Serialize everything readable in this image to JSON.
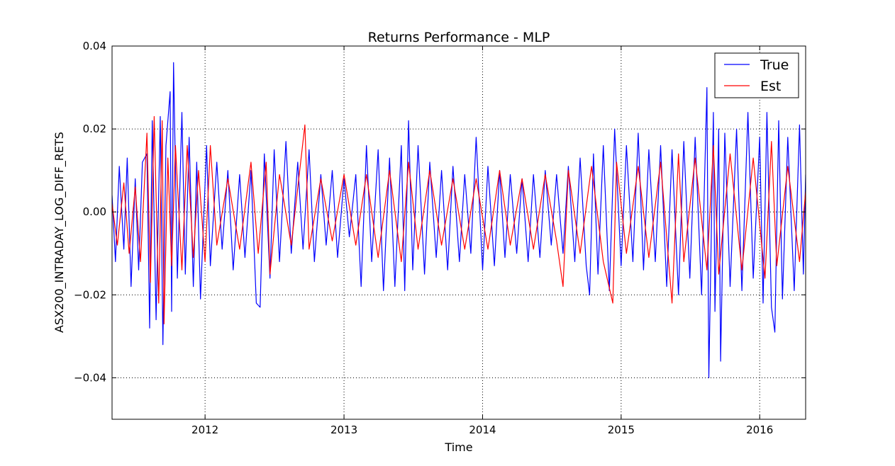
{
  "chart_data": {
    "type": "line",
    "title": "Returns Performance - MLP",
    "xlabel": "Time",
    "ylabel": "ASX200_INTRADAY_LOG_DIFF_RETS",
    "xlim": [
      "2011-05-01",
      "2016-05-01"
    ],
    "ylim": [
      -0.05,
      0.04
    ],
    "x_ticks": [
      {
        "date": "2012-01-01",
        "label": "2012"
      },
      {
        "date": "2013-01-01",
        "label": "2013"
      },
      {
        "date": "2014-01-01",
        "label": "2014"
      },
      {
        "date": "2015-01-01",
        "label": "2015"
      },
      {
        "date": "2016-01-01",
        "label": "2016"
      }
    ],
    "y_ticks": [
      {
        "value": 0.04,
        "label": "0.04"
      },
      {
        "value": 0.02,
        "label": "0.02"
      },
      {
        "value": 0.0,
        "label": "0.00"
      },
      {
        "value": -0.02,
        "label": "−0.02"
      },
      {
        "value": -0.04,
        "label": "−0.04"
      }
    ],
    "grid": true,
    "legend": "top-right",
    "series": [
      {
        "name": "True",
        "color": "#0000ff",
        "points": [
          [
            "2011-05-01",
            0.004
          ],
          [
            "2011-05-10",
            -0.012
          ],
          [
            "2011-05-20",
            0.011
          ],
          [
            "2011-06-01",
            -0.009
          ],
          [
            "2011-06-10",
            0.013
          ],
          [
            "2011-06-20",
            -0.018
          ],
          [
            "2011-07-01",
            0.008
          ],
          [
            "2011-07-10",
            -0.014
          ],
          [
            "2011-07-20",
            0.012
          ],
          [
            "2011-08-01",
            0.014
          ],
          [
            "2011-08-08",
            -0.028
          ],
          [
            "2011-08-15",
            0.022
          ],
          [
            "2011-08-25",
            -0.026
          ],
          [
            "2011-09-05",
            0.023
          ],
          [
            "2011-09-12",
            -0.032
          ],
          [
            "2011-09-20",
            0.016
          ],
          [
            "2011-10-01",
            0.029
          ],
          [
            "2011-10-05",
            -0.024
          ],
          [
            "2011-10-10",
            0.036
          ],
          [
            "2011-10-20",
            -0.016
          ],
          [
            "2011-11-01",
            0.024
          ],
          [
            "2011-11-10",
            -0.015
          ],
          [
            "2011-11-20",
            0.018
          ],
          [
            "2011-12-01",
            -0.018
          ],
          [
            "2011-12-10",
            0.012
          ],
          [
            "2011-12-20",
            -0.021
          ],
          [
            "2012-01-05",
            0.016
          ],
          [
            "2012-01-15",
            -0.013
          ],
          [
            "2012-02-01",
            0.012
          ],
          [
            "2012-02-15",
            -0.009
          ],
          [
            "2012-03-01",
            0.01
          ],
          [
            "2012-03-15",
            -0.014
          ],
          [
            "2012-04-01",
            0.009
          ],
          [
            "2012-04-15",
            -0.011
          ],
          [
            "2012-05-01",
            0.01
          ],
          [
            "2012-05-15",
            -0.022
          ],
          [
            "2012-05-25",
            -0.023
          ],
          [
            "2012-06-05",
            0.014
          ],
          [
            "2012-06-20",
            -0.016
          ],
          [
            "2012-07-01",
            0.015
          ],
          [
            "2012-07-15",
            -0.012
          ],
          [
            "2012-08-01",
            0.017
          ],
          [
            "2012-08-15",
            -0.01
          ],
          [
            "2012-09-01",
            0.012
          ],
          [
            "2012-09-15",
            -0.009
          ],
          [
            "2012-10-01",
            0.015
          ],
          [
            "2012-10-15",
            -0.012
          ],
          [
            "2012-11-01",
            0.009
          ],
          [
            "2012-11-15",
            -0.008
          ],
          [
            "2012-12-01",
            0.01
          ],
          [
            "2012-12-15",
            -0.011
          ],
          [
            "2013-01-01",
            0.008
          ],
          [
            "2013-01-15",
            -0.006
          ],
          [
            "2013-02-01",
            0.009
          ],
          [
            "2013-02-15",
            -0.018
          ],
          [
            "2013-03-01",
            0.016
          ],
          [
            "2013-03-15",
            -0.012
          ],
          [
            "2013-04-01",
            0.015
          ],
          [
            "2013-04-15",
            -0.019
          ],
          [
            "2013-05-01",
            0.013
          ],
          [
            "2013-05-15",
            -0.018
          ],
          [
            "2013-06-01",
            0.016
          ],
          [
            "2013-06-10",
            -0.019
          ],
          [
            "2013-06-20",
            0.022
          ],
          [
            "2013-07-01",
            -0.014
          ],
          [
            "2013-07-15",
            0.016
          ],
          [
            "2013-08-01",
            -0.015
          ],
          [
            "2013-08-15",
            0.012
          ],
          [
            "2013-09-01",
            -0.011
          ],
          [
            "2013-09-15",
            0.01
          ],
          [
            "2013-10-01",
            -0.014
          ],
          [
            "2013-10-15",
            0.011
          ],
          [
            "2013-11-01",
            -0.012
          ],
          [
            "2013-11-15",
            0.009
          ],
          [
            "2013-12-01",
            -0.01
          ],
          [
            "2013-12-15",
            0.018
          ],
          [
            "2014-01-01",
            -0.014
          ],
          [
            "2014-01-15",
            0.011
          ],
          [
            "2014-02-01",
            -0.013
          ],
          [
            "2014-02-15",
            0.01
          ],
          [
            "2014-03-01",
            -0.011
          ],
          [
            "2014-03-15",
            0.009
          ],
          [
            "2014-04-01",
            -0.01
          ],
          [
            "2014-04-15",
            0.008
          ],
          [
            "2014-05-01",
            -0.012
          ],
          [
            "2014-05-15",
            0.009
          ],
          [
            "2014-06-01",
            -0.011
          ],
          [
            "2014-06-15",
            0.01
          ],
          [
            "2014-07-01",
            -0.008
          ],
          [
            "2014-07-15",
            0.009
          ],
          [
            "2014-08-01",
            -0.01
          ],
          [
            "2014-08-15",
            0.011
          ],
          [
            "2014-09-01",
            -0.012
          ],
          [
            "2014-09-15",
            0.013
          ],
          [
            "2014-10-01",
            -0.013
          ],
          [
            "2014-10-10",
            -0.02
          ],
          [
            "2014-10-20",
            0.014
          ],
          [
            "2014-11-01",
            -0.015
          ],
          [
            "2014-11-15",
            0.016
          ],
          [
            "2014-12-01",
            -0.019
          ],
          [
            "2014-12-15",
            0.02
          ],
          [
            "2015-01-01",
            -0.013
          ],
          [
            "2015-01-15",
            0.016
          ],
          [
            "2015-02-01",
            -0.012
          ],
          [
            "2015-02-15",
            0.019
          ],
          [
            "2015-03-01",
            -0.014
          ],
          [
            "2015-03-15",
            0.015
          ],
          [
            "2015-04-01",
            -0.012
          ],
          [
            "2015-04-15",
            0.016
          ],
          [
            "2015-05-01",
            -0.018
          ],
          [
            "2015-05-15",
            0.015
          ],
          [
            "2015-06-01",
            -0.02
          ],
          [
            "2015-06-15",
            0.017
          ],
          [
            "2015-07-01",
            -0.016
          ],
          [
            "2015-07-15",
            0.018
          ],
          [
            "2015-08-01",
            -0.02
          ],
          [
            "2015-08-15",
            0.03
          ],
          [
            "2015-08-20",
            -0.04
          ],
          [
            "2015-09-01",
            0.024
          ],
          [
            "2015-09-05",
            -0.024
          ],
          [
            "2015-09-15",
            0.02
          ],
          [
            "2015-09-20",
            -0.036
          ],
          [
            "2015-10-01",
            0.019
          ],
          [
            "2015-10-15",
            -0.018
          ],
          [
            "2015-11-01",
            0.02
          ],
          [
            "2015-11-15",
            -0.019
          ],
          [
            "2015-12-01",
            0.024
          ],
          [
            "2015-12-15",
            -0.016
          ],
          [
            "2016-01-01",
            0.018
          ],
          [
            "2016-01-10",
            -0.022
          ],
          [
            "2016-01-20",
            0.024
          ],
          [
            "2016-02-01",
            -0.023
          ],
          [
            "2016-02-10",
            -0.029
          ],
          [
            "2016-02-20",
            0.022
          ],
          [
            "2016-03-01",
            -0.021
          ],
          [
            "2016-03-15",
            0.018
          ],
          [
            "2016-04-01",
            -0.019
          ],
          [
            "2016-04-15",
            0.021
          ],
          [
            "2016-04-25",
            -0.015
          ],
          [
            "2016-05-01",
            0.009
          ]
        ]
      },
      {
        "name": "Est",
        "color": "#ff0000",
        "points": [
          [
            "2011-05-01",
            0.002
          ],
          [
            "2011-05-15",
            -0.008
          ],
          [
            "2011-06-01",
            0.007
          ],
          [
            "2011-06-15",
            -0.01
          ],
          [
            "2011-07-01",
            0.006
          ],
          [
            "2011-07-15",
            -0.012
          ],
          [
            "2011-08-01",
            0.019
          ],
          [
            "2011-08-10",
            -0.017
          ],
          [
            "2011-08-20",
            0.023
          ],
          [
            "2011-09-01",
            -0.022
          ],
          [
            "2011-09-10",
            0.022
          ],
          [
            "2011-09-15",
            -0.027
          ],
          [
            "2011-09-25",
            0.013
          ],
          [
            "2011-10-05",
            -0.013
          ],
          [
            "2011-10-15",
            0.016
          ],
          [
            "2011-11-01",
            -0.014
          ],
          [
            "2011-11-15",
            0.016
          ],
          [
            "2011-12-01",
            -0.011
          ],
          [
            "2011-12-15",
            0.01
          ],
          [
            "2012-01-01",
            -0.012
          ],
          [
            "2012-01-15",
            0.016
          ],
          [
            "2012-02-01",
            -0.008
          ],
          [
            "2012-03-01",
            0.008
          ],
          [
            "2012-04-01",
            -0.009
          ],
          [
            "2012-05-01",
            0.012
          ],
          [
            "2012-05-20",
            -0.01
          ],
          [
            "2012-06-10",
            0.012
          ],
          [
            "2012-06-20",
            -0.015
          ],
          [
            "2012-07-15",
            0.009
          ],
          [
            "2012-08-15",
            -0.008
          ],
          [
            "2012-09-20",
            0.021
          ],
          [
            "2012-10-01",
            -0.009
          ],
          [
            "2012-11-01",
            0.008
          ],
          [
            "2012-12-01",
            -0.007
          ],
          [
            "2013-01-01",
            0.009
          ],
          [
            "2013-02-01",
            -0.008
          ],
          [
            "2013-03-01",
            0.009
          ],
          [
            "2013-04-01",
            -0.011
          ],
          [
            "2013-05-01",
            0.01
          ],
          [
            "2013-06-01",
            -0.012
          ],
          [
            "2013-06-20",
            0.012
          ],
          [
            "2013-07-15",
            -0.009
          ],
          [
            "2013-08-15",
            0.01
          ],
          [
            "2013-09-15",
            -0.008
          ],
          [
            "2013-10-15",
            0.008
          ],
          [
            "2013-11-15",
            -0.009
          ],
          [
            "2013-12-15",
            0.008
          ],
          [
            "2014-01-15",
            -0.009
          ],
          [
            "2014-02-15",
            0.01
          ],
          [
            "2014-03-15",
            -0.008
          ],
          [
            "2014-04-15",
            0.008
          ],
          [
            "2014-05-15",
            -0.009
          ],
          [
            "2014-06-15",
            0.009
          ],
          [
            "2014-07-15",
            -0.007
          ],
          [
            "2014-08-01",
            -0.018
          ],
          [
            "2014-08-15",
            0.01
          ],
          [
            "2014-09-15",
            -0.01
          ],
          [
            "2014-10-15",
            0.011
          ],
          [
            "2014-11-15",
            -0.012
          ],
          [
            "2014-12-10",
            -0.022
          ],
          [
            "2014-12-20",
            0.012
          ],
          [
            "2015-01-15",
            -0.01
          ],
          [
            "2015-02-15",
            0.011
          ],
          [
            "2015-03-15",
            -0.011
          ],
          [
            "2015-04-15",
            0.012
          ],
          [
            "2015-05-15",
            -0.022
          ],
          [
            "2015-06-01",
            0.014
          ],
          [
            "2015-06-15",
            -0.012
          ],
          [
            "2015-07-15",
            0.013
          ],
          [
            "2015-08-15",
            -0.014
          ],
          [
            "2015-09-01",
            0.016
          ],
          [
            "2015-09-15",
            -0.015
          ],
          [
            "2015-10-15",
            0.014
          ],
          [
            "2015-11-15",
            -0.014
          ],
          [
            "2015-12-15",
            0.013
          ],
          [
            "2016-01-15",
            -0.016
          ],
          [
            "2016-02-01",
            0.017
          ],
          [
            "2016-02-15",
            -0.013
          ],
          [
            "2016-03-15",
            0.011
          ],
          [
            "2016-04-15",
            -0.012
          ],
          [
            "2016-05-01",
            0.005
          ]
        ]
      }
    ]
  }
}
